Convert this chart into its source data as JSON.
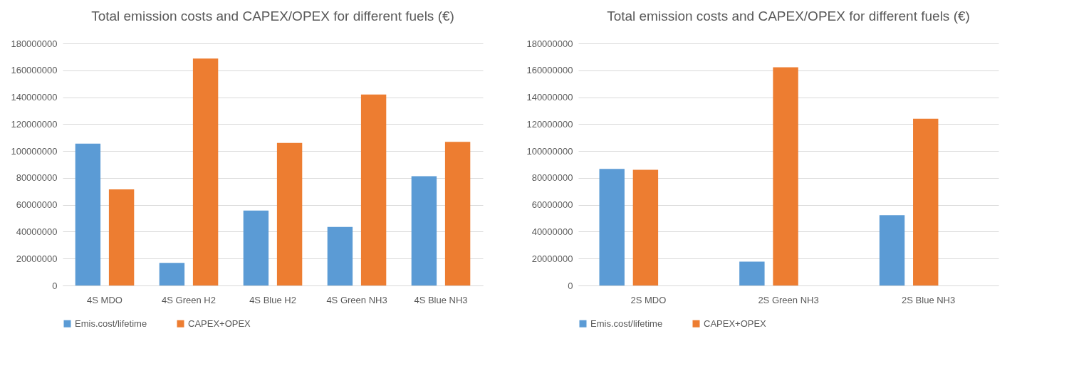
{
  "chart_data": [
    {
      "type": "bar",
      "title": "Total emission costs and CAPEX/OPEX for different fuels (€)",
      "categories": [
        "4S MDO",
        "4S Green H2",
        "4S Blue H2",
        "4S Green NH3",
        "4S Blue NH3"
      ],
      "series": [
        {
          "name": "Emis.cost/lifetime",
          "color": "#5b9bd5",
          "values": [
            105500000,
            16750000,
            55750000,
            43500000,
            81250000
          ]
        },
        {
          "name": "CAPEX+OPEX",
          "color": "#ed7d31",
          "values": [
            71500000,
            168750000,
            106000000,
            142000000,
            106750000
          ]
        }
      ],
      "ylim": [
        0,
        180000000
      ],
      "yticks": [
        0,
        20000000,
        40000000,
        60000000,
        80000000,
        100000000,
        120000000,
        140000000,
        160000000,
        180000000
      ],
      "grid": "y",
      "legend": "bottom"
    },
    {
      "type": "bar",
      "title": "Total emission costs and CAPEX/OPEX for different fuels (€)",
      "categories": [
        "2S MDO",
        "2S Green NH3",
        "2S Blue NH3"
      ],
      "series": [
        {
          "name": "Emis.cost/lifetime",
          "color": "#5b9bd5",
          "values": [
            86750000,
            17750000,
            52250000
          ]
        },
        {
          "name": "CAPEX+OPEX",
          "color": "#ed7d31",
          "values": [
            86000000,
            162250000,
            124000000
          ]
        }
      ],
      "ylim": [
        0,
        180000000
      ],
      "yticks": [
        0,
        20000000,
        40000000,
        60000000,
        80000000,
        100000000,
        120000000,
        140000000,
        160000000,
        180000000
      ],
      "grid": "y",
      "legend": "bottom"
    }
  ]
}
